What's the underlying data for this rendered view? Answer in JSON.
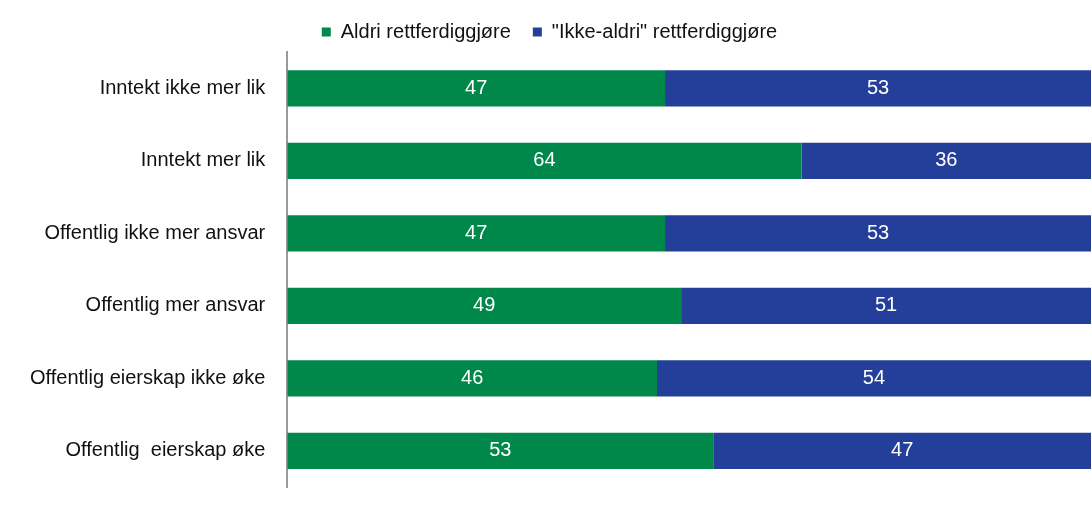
{
  "chart_data": {
    "type": "bar",
    "orientation": "horizontal",
    "stacked": true,
    "categories": [
      "Inntekt ikke mer lik",
      "Inntekt mer lik",
      "Offentlig ikke mer ansvar",
      "Offentlig mer ansvar",
      "Offentlig eierskap ikke øke",
      "Offentlig  eierskap øke"
    ],
    "series": [
      {
        "name": "Aldri rettferdiggjøre",
        "color": "#00884a",
        "values": [
          47,
          64,
          47,
          49,
          46,
          53
        ]
      },
      {
        "name": "\"Ikke-aldri\" rettferdiggjøre",
        "color": "#233f99",
        "values": [
          53,
          36,
          53,
          51,
          54,
          47
        ]
      }
    ],
    "xlim": [
      0,
      100
    ],
    "tick_labels": "y",
    "legend": "top",
    "data_labels": true
  }
}
